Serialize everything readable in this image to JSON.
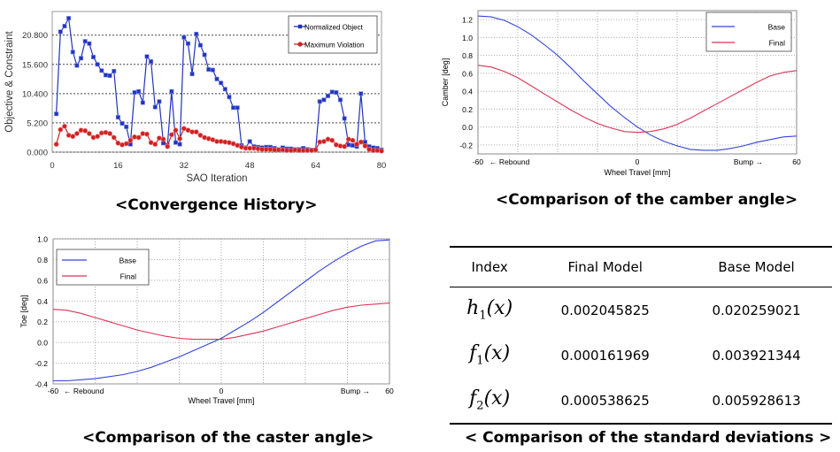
{
  "chart_data": [
    {
      "type": "line",
      "xlabel": "SAO Iteration",
      "ylabel": "Objective & Constraint",
      "xlim": [
        0,
        80
      ],
      "ylim": [
        0,
        25000
      ],
      "xticks": [
        "0",
        "16",
        "32",
        "48",
        "64",
        "80"
      ],
      "yticks": [
        "0.000",
        "5.200",
        "10.400",
        "15.600",
        "20.800"
      ],
      "xtick_values": [
        0,
        16,
        32,
        48,
        64,
        80
      ],
      "ytick_values": [
        0,
        5200,
        10400,
        15600,
        20800
      ],
      "grid": "dashed-horizontal",
      "legend_position": "top-right",
      "series": [
        {
          "name": "Normalized Object",
          "color": "#2233bb",
          "marker": "square",
          "x": [
            1,
            2,
            3,
            4,
            5,
            6,
            7,
            8,
            9,
            10,
            11,
            12,
            13,
            14,
            15,
            16,
            17,
            18,
            19,
            20,
            21,
            22,
            23,
            24,
            25,
            26,
            27,
            28,
            29,
            30,
            31,
            32,
            33,
            34,
            35,
            36,
            37,
            38,
            39,
            40,
            41,
            42,
            43,
            44,
            45,
            46,
            47,
            48,
            49,
            50,
            51,
            52,
            53,
            54,
            55,
            56,
            57,
            58,
            59,
            60,
            61,
            62,
            63,
            64,
            65,
            66,
            67,
            68,
            69,
            70,
            71,
            72,
            73,
            74,
            75,
            76,
            77,
            78,
            79,
            80
          ],
          "y": [
            6800,
            21400,
            22400,
            23800,
            17800,
            15400,
            16700,
            19700,
            19300,
            16900,
            15600,
            14500,
            13700,
            13600,
            14400,
            6200,
            5100,
            4500,
            1400,
            10600,
            10800,
            8800,
            17000,
            16100,
            8000,
            9000,
            1600,
            1200,
            10800,
            1700,
            1400,
            20400,
            19300,
            13900,
            21000,
            19000,
            17300,
            14700,
            14600,
            13000,
            12300,
            11200,
            9800,
            7900,
            7900,
            1200,
            800,
            1900,
            1000,
            900,
            800,
            900,
            900,
            700,
            500,
            800,
            600,
            600,
            500,
            500,
            700,
            500,
            400,
            400,
            9000,
            9300,
            10000,
            10700,
            10600,
            9300,
            6000,
            1300,
            1200,
            1000,
            10400,
            1800,
            1000,
            800,
            700,
            400
          ]
        },
        {
          "name": "Maximum Violation",
          "color": "#cc2222",
          "marker": "circle",
          "x": [
            1,
            2,
            3,
            4,
            5,
            6,
            7,
            8,
            9,
            10,
            11,
            12,
            13,
            14,
            15,
            16,
            17,
            18,
            19,
            20,
            21,
            22,
            23,
            24,
            25,
            26,
            27,
            28,
            29,
            30,
            31,
            32,
            33,
            34,
            35,
            36,
            37,
            38,
            39,
            40,
            41,
            42,
            43,
            44,
            45,
            46,
            47,
            48,
            49,
            50,
            51,
            52,
            53,
            54,
            55,
            56,
            57,
            58,
            59,
            60,
            61,
            62,
            63,
            64,
            65,
            66,
            67,
            68,
            69,
            70,
            71,
            72,
            73,
            74,
            75,
            76,
            77,
            78,
            79,
            80
          ],
          "y": [
            1400,
            4000,
            4600,
            3000,
            2800,
            3300,
            3900,
            3800,
            3300,
            2600,
            2800,
            3400,
            3500,
            3300,
            2600,
            1600,
            1300,
            1500,
            2100,
            2700,
            2600,
            3300,
            3200,
            1700,
            1400,
            2500,
            2300,
            1000,
            3100,
            3900,
            2400,
            4200,
            3900,
            3600,
            3600,
            3000,
            2600,
            2400,
            2200,
            1900,
            1900,
            1800,
            1700,
            1500,
            1200,
            900,
            700,
            700,
            700,
            600,
            500,
            500,
            500,
            400,
            400,
            400,
            300,
            300,
            400,
            300,
            300,
            300,
            300,
            400,
            1800,
            1900,
            2300,
            2100,
            1300,
            1100,
            1000,
            2300,
            2100,
            1400,
            1800,
            1100,
            500,
            300,
            300,
            200
          ]
        }
      ]
    },
    {
      "type": "line",
      "xlabel": "Wheel Travel [mm]",
      "ylabel": "Camber [deg]",
      "xlim": [
        -60,
        60
      ],
      "ylim": [
        -0.3,
        1.3
      ],
      "yticks": [
        "1.2",
        "1.0",
        "0.8",
        "0.6",
        "0.4",
        "0.2",
        "0.0",
        "-0.2"
      ],
      "ytick_values": [
        1.2,
        1.0,
        0.8,
        0.6,
        0.4,
        0.2,
        0.0,
        -0.2
      ],
      "xticks": [
        "-60",
        "0",
        "60"
      ],
      "xtick_values": [
        -60,
        0,
        60
      ],
      "grid": "dotted",
      "legend_position": "top-right",
      "annotations": {
        "left": "← Rebound",
        "right": "Bump →"
      },
      "series": [
        {
          "name": "Base",
          "color": "#3344dd",
          "x": [
            -60,
            -55,
            -50,
            -45,
            -40,
            -35,
            -30,
            -25,
            -20,
            -15,
            -10,
            -5,
            0,
            5,
            10,
            15,
            20,
            25,
            30,
            35,
            40,
            45,
            50,
            55,
            60
          ],
          "y": [
            1.24,
            1.23,
            1.19,
            1.12,
            1.03,
            0.92,
            0.8,
            0.66,
            0.51,
            0.37,
            0.23,
            0.11,
            0.0,
            -0.09,
            -0.16,
            -0.21,
            -0.25,
            -0.26,
            -0.26,
            -0.24,
            -0.21,
            -0.17,
            -0.14,
            -0.11,
            -0.1
          ]
        },
        {
          "name": "Final",
          "color": "#dd3355",
          "x": [
            -60,
            -55,
            -50,
            -45,
            -40,
            -35,
            -30,
            -25,
            -20,
            -15,
            -10,
            -5,
            0,
            5,
            10,
            15,
            20,
            25,
            30,
            35,
            40,
            45,
            50,
            55,
            60
          ],
          "y": [
            0.69,
            0.67,
            0.62,
            0.55,
            0.46,
            0.37,
            0.28,
            0.19,
            0.11,
            0.04,
            -0.01,
            -0.05,
            -0.06,
            -0.05,
            -0.02,
            0.03,
            0.1,
            0.18,
            0.26,
            0.34,
            0.42,
            0.5,
            0.57,
            0.61,
            0.63
          ]
        }
      ]
    },
    {
      "type": "line",
      "xlabel": "Wheel Travel [mm]",
      "ylabel": "Toe [deg]",
      "xlim": [
        -60,
        60
      ],
      "ylim": [
        -0.4,
        1.0
      ],
      "yticks": [
        "1.0",
        "0.8",
        "0.6",
        "0.4",
        "0.2",
        "0.0",
        "-0.2",
        "-0.4"
      ],
      "ytick_values": [
        1.0,
        0.8,
        0.6,
        0.4,
        0.2,
        0.0,
        -0.2,
        -0.4
      ],
      "xticks": [
        "-60",
        "0",
        "60"
      ],
      "xtick_values": [
        -60,
        0,
        60
      ],
      "grid": "dotted",
      "legend_position": "top-left",
      "annotations": {
        "left": "← Rebound",
        "right": "Bump →"
      },
      "series": [
        {
          "name": "Base",
          "color": "#3344dd",
          "x": [
            -60,
            -55,
            -50,
            -45,
            -40,
            -35,
            -30,
            -25,
            -20,
            -15,
            -10,
            -5,
            0,
            5,
            10,
            15,
            20,
            25,
            30,
            35,
            40,
            45,
            50,
            55,
            60
          ],
          "y": [
            -0.37,
            -0.37,
            -0.36,
            -0.35,
            -0.33,
            -0.31,
            -0.28,
            -0.24,
            -0.19,
            -0.14,
            -0.08,
            -0.02,
            0.04,
            0.12,
            0.2,
            0.29,
            0.39,
            0.49,
            0.59,
            0.69,
            0.78,
            0.86,
            0.93,
            0.98,
            0.99
          ]
        },
        {
          "name": "Final",
          "color": "#dd3355",
          "x": [
            -60,
            -55,
            -50,
            -45,
            -40,
            -35,
            -30,
            -25,
            -20,
            -15,
            -10,
            -5,
            0,
            5,
            10,
            15,
            20,
            25,
            30,
            35,
            40,
            45,
            50,
            55,
            60
          ],
          "y": [
            0.32,
            0.31,
            0.28,
            0.24,
            0.2,
            0.16,
            0.12,
            0.09,
            0.06,
            0.04,
            0.03,
            0.03,
            0.03,
            0.05,
            0.08,
            0.11,
            0.15,
            0.19,
            0.23,
            0.27,
            0.31,
            0.34,
            0.36,
            0.37,
            0.38
          ]
        }
      ]
    },
    {
      "type": "table",
      "columns": [
        "Index",
        "Final Model",
        "Base Model"
      ],
      "rows": [
        {
          "index_base": "h",
          "index_sub": "1",
          "index_arg": "(x)",
          "final": "0.002045825",
          "base": "0.020259021"
        },
        {
          "index_base": "f",
          "index_sub": "1",
          "index_arg": "(x)",
          "final": "0.000161969",
          "base": "0.003921344"
        },
        {
          "index_base": "f",
          "index_sub": "2",
          "index_arg": "(x)",
          "final": "0.000538625",
          "base": "0.005928613"
        }
      ]
    }
  ],
  "captions": {
    "convergence": "<Convergence History>",
    "camber": "<Comparison of the camber angle>",
    "caster": "<Comparison of the caster angle>",
    "table": "< Comparison of the standard deviations >"
  }
}
